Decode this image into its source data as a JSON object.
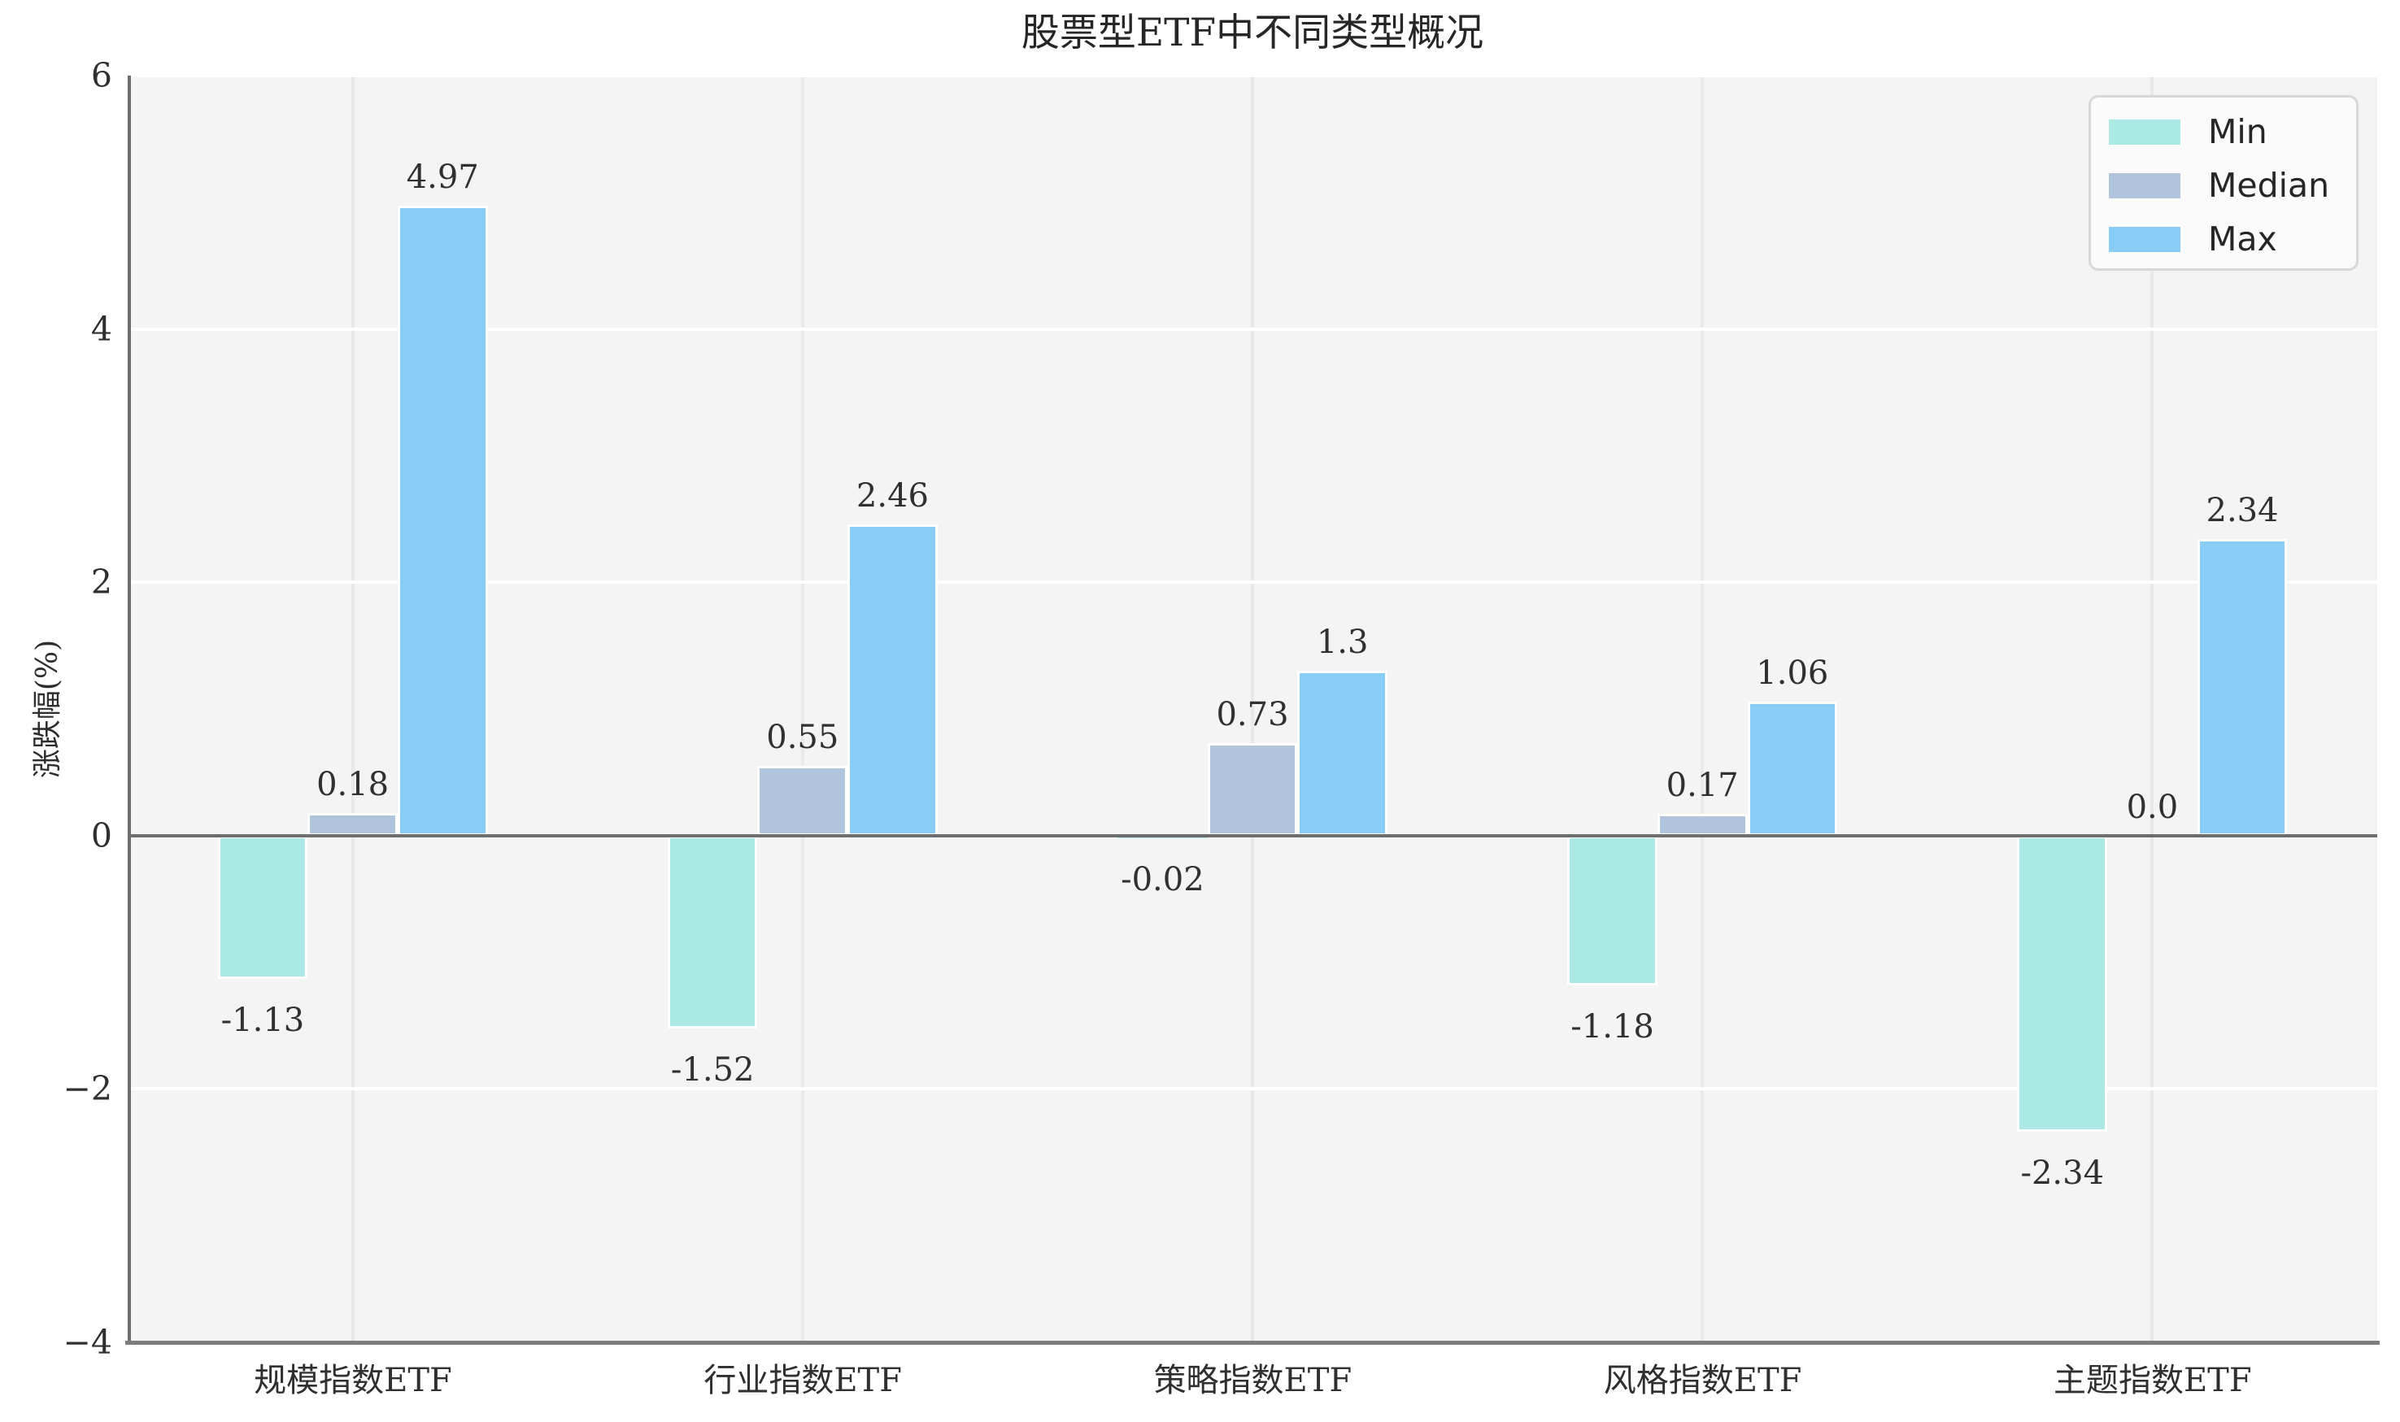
{
  "chart_data": {
    "type": "bar",
    "title": "股票型ETF中不同类型概况",
    "ylabel": "涨跌幅(%)",
    "xlabel": "",
    "categories": [
      "规模指数ETF",
      "行业指数ETF",
      "策略指数ETF",
      "风格指数ETF",
      "主题指数ETF"
    ],
    "series": [
      {
        "name": "Min",
        "color": "#abe9e4",
        "values": [
          -1.13,
          -1.52,
          -0.02,
          -1.18,
          -2.34
        ],
        "labels": [
          "-1.13",
          "-1.52",
          "-0.02",
          "-1.18",
          "-2.34"
        ]
      },
      {
        "name": "Median",
        "color": "#b0c4de",
        "values": [
          0.18,
          0.55,
          0.73,
          0.17,
          0.0
        ],
        "labels": [
          "0.18",
          "0.55",
          "0.73",
          "0.17",
          "0.0"
        ]
      },
      {
        "name": "Max",
        "color": "#87cdf6",
        "values": [
          4.97,
          2.46,
          1.3,
          1.06,
          2.34
        ],
        "labels": [
          "4.97",
          "2.46",
          "1.3",
          "1.06",
          "2.34"
        ]
      }
    ],
    "ylim": [
      -4,
      6
    ],
    "yticks": [
      {
        "value": 6,
        "label": "6"
      },
      {
        "value": 4,
        "label": "4"
      },
      {
        "value": 2,
        "label": "2"
      },
      {
        "value": 0,
        "label": "0"
      },
      {
        "value": -2,
        "label": "−2"
      },
      {
        "value": -4,
        "label": "−4"
      }
    ],
    "grid": true,
    "legend_position": "upper right",
    "colors": {
      "plot_background": "#f4f4f4",
      "h_grid": "#ffffff",
      "v_grid": "#e9e9e9",
      "axis": "#6e6e6e",
      "bottom_spine": "#7d7d7d"
    }
  }
}
